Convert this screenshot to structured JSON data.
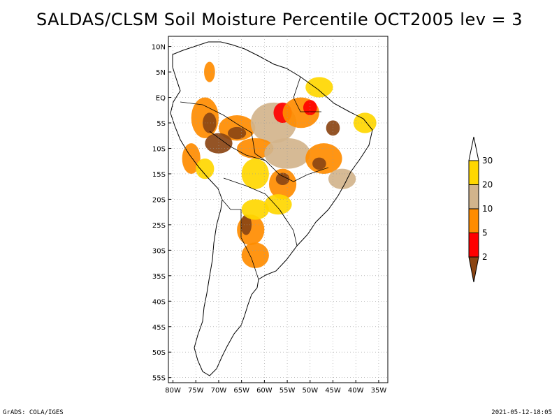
{
  "title": "SALDAS/CLSM Soil Moisture Percentile OCT2005 lev = 3",
  "footer": {
    "left": "GrADS: COLA/IGES",
    "right": "2021-05-12-18:05"
  },
  "map": {
    "lon_range": [
      -81,
      -33
    ],
    "lat_range": [
      -56,
      12
    ],
    "lat_ticks": [
      {
        "value": 10,
        "label": "10N"
      },
      {
        "value": 5,
        "label": "5N"
      },
      {
        "value": 0,
        "label": "EQ"
      },
      {
        "value": -5,
        "label": "5S"
      },
      {
        "value": -10,
        "label": "10S"
      },
      {
        "value": -15,
        "label": "15S"
      },
      {
        "value": -20,
        "label": "20S"
      },
      {
        "value": -25,
        "label": "25S"
      },
      {
        "value": -30,
        "label": "30S"
      },
      {
        "value": -35,
        "label": "35S"
      },
      {
        "value": -40,
        "label": "40S"
      },
      {
        "value": -45,
        "label": "45S"
      },
      {
        "value": -50,
        "label": "50S"
      },
      {
        "value": -55,
        "label": "55S"
      }
    ],
    "lon_ticks": [
      {
        "value": -80,
        "label": "80W"
      },
      {
        "value": -75,
        "label": "75W"
      },
      {
        "value": -70,
        "label": "70W"
      },
      {
        "value": -65,
        "label": "65W"
      },
      {
        "value": -60,
        "label": "60W"
      },
      {
        "value": -55,
        "label": "55W"
      },
      {
        "value": -50,
        "label": "50W"
      },
      {
        "value": -45,
        "label": "45W"
      },
      {
        "value": -40,
        "label": "40W"
      },
      {
        "value": -35,
        "label": "35W"
      }
    ]
  },
  "legend": {
    "levels": [
      {
        "label": "30",
        "color": "#ffffff"
      },
      {
        "label": "20",
        "color": "#ffd700"
      },
      {
        "label": "10",
        "color": "#d2b48c"
      },
      {
        "label": "5",
        "color": "#ff8c00"
      },
      {
        "label": "2",
        "color": "#ff0000"
      },
      {
        "label": "",
        "color": "#8b4513"
      }
    ]
  },
  "colors": {
    "brown": "#8b4513",
    "red": "#ff0000",
    "orange": "#ff8c00",
    "tan": "#d2b48c",
    "gold": "#ffd700"
  },
  "blobs": [
    {
      "lon": -73,
      "lat": -4,
      "rx": 3,
      "ry": 4,
      "color": "orange"
    },
    {
      "lon": -72,
      "lat": -5,
      "rx": 1.5,
      "ry": 2,
      "color": "brown"
    },
    {
      "lon": -66,
      "lat": -6,
      "rx": 4,
      "ry": 2.5,
      "color": "orange"
    },
    {
      "lon": -66,
      "lat": -7,
      "rx": 2,
      "ry": 1.2,
      "color": "brown"
    },
    {
      "lon": -70,
      "lat": -9,
      "rx": 3,
      "ry": 2,
      "color": "brown"
    },
    {
      "lon": -58,
      "lat": -5,
      "rx": 5,
      "ry": 4,
      "color": "tan"
    },
    {
      "lon": -56,
      "lat": -3,
      "rx": 2,
      "ry": 2,
      "color": "red"
    },
    {
      "lon": -52,
      "lat": -3,
      "rx": 4,
      "ry": 3,
      "color": "orange"
    },
    {
      "lon": -50,
      "lat": -2,
      "rx": 1.5,
      "ry": 1.5,
      "color": "red"
    },
    {
      "lon": -45,
      "lat": -6,
      "rx": 1.5,
      "ry": 1.5,
      "color": "brown"
    },
    {
      "lon": -62,
      "lat": -10,
      "rx": 4,
      "ry": 2,
      "color": "orange"
    },
    {
      "lon": -55,
      "lat": -11,
      "rx": 5,
      "ry": 3,
      "color": "tan"
    },
    {
      "lon": -47,
      "lat": -12,
      "rx": 4,
      "ry": 3,
      "color": "orange"
    },
    {
      "lon": -48,
      "lat": -13,
      "rx": 1.5,
      "ry": 1.2,
      "color": "brown"
    },
    {
      "lon": -56,
      "lat": -17,
      "rx": 3,
      "ry": 3,
      "color": "orange"
    },
    {
      "lon": -56,
      "lat": -16,
      "rx": 1.5,
      "ry": 1.2,
      "color": "brown"
    },
    {
      "lon": -62,
      "lat": -15,
      "rx": 3,
      "ry": 3,
      "color": "gold"
    },
    {
      "lon": -43,
      "lat": -16,
      "rx": 3,
      "ry": 2,
      "color": "tan"
    },
    {
      "lon": -63,
      "lat": -26,
      "rx": 3,
      "ry": 3,
      "color": "orange"
    },
    {
      "lon": -64,
      "lat": -25,
      "rx": 1.2,
      "ry": 2,
      "color": "brown"
    },
    {
      "lon": -62,
      "lat": -31,
      "rx": 3,
      "ry": 2.5,
      "color": "orange"
    },
    {
      "lon": -62,
      "lat": -22,
      "rx": 3,
      "ry": 2,
      "color": "gold"
    },
    {
      "lon": -57,
      "lat": -21,
      "rx": 3,
      "ry": 2,
      "color": "gold"
    },
    {
      "lon": -76,
      "lat": -12,
      "rx": 2,
      "ry": 3,
      "color": "orange"
    },
    {
      "lon": -73,
      "lat": -14,
      "rx": 2,
      "ry": 2,
      "color": "gold"
    },
    {
      "lon": -38,
      "lat": -5,
      "rx": 2.5,
      "ry": 2,
      "color": "gold"
    },
    {
      "lon": -48,
      "lat": 2,
      "rx": 3,
      "ry": 2,
      "color": "gold"
    },
    {
      "lon": -72,
      "lat": 5,
      "rx": 1.2,
      "ry": 2,
      "color": "orange"
    }
  ]
}
